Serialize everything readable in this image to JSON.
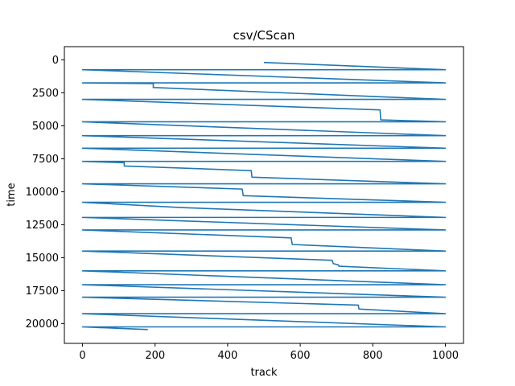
{
  "chart_data": {
    "type": "line",
    "title": "csv/CScan",
    "xlabel": "track",
    "ylabel": "time",
    "xlim": [
      -50,
      1050
    ],
    "ylim": [
      -1000,
      21500
    ],
    "y_inverted": true,
    "xticks": [
      0,
      200,
      400,
      600,
      800,
      1000
    ],
    "yticks": [
      0,
      2500,
      5000,
      7500,
      10000,
      12500,
      15000,
      17500,
      20000
    ],
    "grid": false,
    "series": [
      {
        "color": "#1f77b4",
        "points": [
          [
            500,
            200
          ],
          [
            1000,
            750
          ],
          [
            0,
            750
          ],
          [
            1000,
            1750
          ],
          [
            0,
            1750
          ],
          [
            195,
            1800
          ],
          [
            195,
            2100
          ],
          [
            1000,
            3000
          ],
          [
            0,
            3000
          ],
          [
            820,
            3800
          ],
          [
            822,
            4550
          ],
          [
            1000,
            4700
          ],
          [
            0,
            4700
          ],
          [
            1000,
            5750
          ],
          [
            0,
            5750
          ],
          [
            1000,
            6700
          ],
          [
            0,
            6700
          ],
          [
            1000,
            7700
          ],
          [
            0,
            7700
          ],
          [
            115,
            7800
          ],
          [
            115,
            8050
          ],
          [
            465,
            8400
          ],
          [
            467,
            8900
          ],
          [
            1000,
            9400
          ],
          [
            0,
            9400
          ],
          [
            440,
            9800
          ],
          [
            443,
            10300
          ],
          [
            1000,
            10800
          ],
          [
            0,
            10800
          ],
          [
            270,
            11200
          ],
          [
            1000,
            11950
          ],
          [
            0,
            11950
          ],
          [
            1000,
            12900
          ],
          [
            0,
            12900
          ],
          [
            575,
            13500
          ],
          [
            578,
            14000
          ],
          [
            1000,
            14500
          ],
          [
            0,
            14500
          ],
          [
            688,
            15200
          ],
          [
            691,
            15450
          ],
          [
            705,
            15550
          ],
          [
            707,
            15650
          ],
          [
            1000,
            16000
          ],
          [
            0,
            16000
          ],
          [
            1000,
            17050
          ],
          [
            0,
            17050
          ],
          [
            1000,
            18000
          ],
          [
            0,
            18000
          ],
          [
            760,
            18600
          ],
          [
            762,
            18900
          ],
          [
            1000,
            19250
          ],
          [
            0,
            19250
          ],
          [
            1000,
            20250
          ],
          [
            0,
            20250
          ],
          [
            180,
            20450
          ]
        ]
      }
    ]
  }
}
